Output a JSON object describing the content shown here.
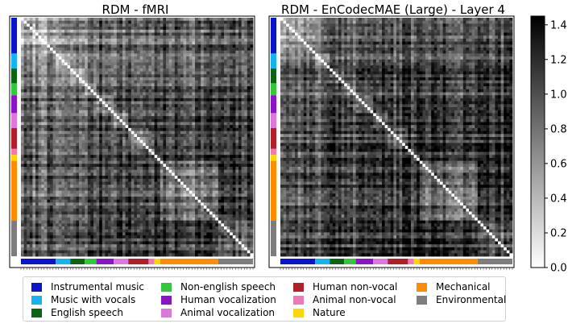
{
  "chart_data": [
    {
      "type": "heatmap",
      "title": "RDM - fMRI",
      "matrix": "representational dissimilarity matrix (stimuli × stimuli), diagonal = 0",
      "color_scale": {
        "min": 0.0,
        "max": 1.45,
        "cmap": "Greys"
      }
    },
    {
      "type": "heatmap",
      "title": "RDM - EnCodecMAE (Large) - Layer 4",
      "color_scale": {
        "min": 0.0,
        "max": 1.45,
        "cmap": "Greys"
      }
    }
  ],
  "colorbar": {
    "ticks": [
      "0.0",
      "0.2",
      "0.4",
      "0.6",
      "0.8",
      "1.0",
      "1.2",
      "1.4"
    ],
    "tick_values": [
      0.0,
      0.2,
      0.4,
      0.6,
      0.8,
      1.0,
      1.2,
      1.4
    ],
    "range": [
      0.0,
      1.45
    ]
  },
  "categories": [
    {
      "label": "Instrumental music",
      "color": "#0a14c8",
      "count": 12
    },
    {
      "label": "Music with vocals",
      "color": "#14b4f0",
      "count": 5
    },
    {
      "label": "English speech",
      "color": "#0a6414",
      "count": 5
    },
    {
      "label": "Non-english speech",
      "color": "#32c83c",
      "count": 4
    },
    {
      "label": "Human vocalization",
      "color": "#8c14c8",
      "count": 6
    },
    {
      "label": "Animal vocalization",
      "color": "#dc78dc",
      "count": 5
    },
    {
      "label": "Human non-vocal",
      "color": "#b41e28",
      "count": 7
    },
    {
      "label": "Animal non-vocal",
      "color": "#f078b4",
      "count": 2
    },
    {
      "label": "Nature",
      "color": "#ffd700",
      "count": 2
    },
    {
      "label": "Mechanical",
      "color": "#ff8c00",
      "count": 20
    },
    {
      "label": "Environmental",
      "color": "#7d7d7d",
      "count": 12
    }
  ],
  "legend": {
    "columns": [
      [
        "Instrumental music",
        "Music with vocals",
        "English speech"
      ],
      [
        "Non-english speech",
        "Human vocalization",
        "Animal vocalization"
      ],
      [
        "Human non-vocal",
        "Animal non-vocal",
        "Nature"
      ],
      [
        "Mechanical",
        "Environmental"
      ]
    ],
    "placement": "bottom"
  }
}
